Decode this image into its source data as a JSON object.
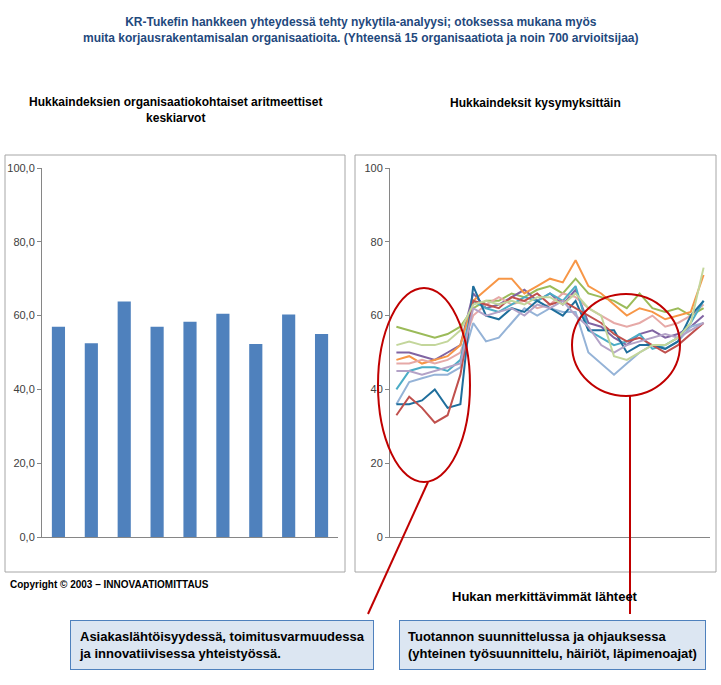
{
  "title": [
    "KR-Tukefin hankkeen yhteydessä tehty nykytila-analyysi; otoksessa mukana myös",
    "muita korjausrakentamisalan organisaatioita. (Yhteensä 15 organisaatiota ja noin 700 arvioitsijaa)"
  ],
  "copyright": "Copyright © 2003 – INNOVAATIOMITTAUS",
  "heading": "Hukan merkittävimmät lähteet",
  "callouts": [
    [
      "Asiakaslähtöisyydessä, toimitusvarmuudessa",
      "ja innovatiivisessa yhteistyössä."
    ],
    [
      "Tuotannon suunnittelussa ja ohjauksessa",
      "(yhteinen työsuunnittelu, häiriöt, läpimenoajat)"
    ]
  ],
  "chart_data": [
    {
      "type": "bar",
      "title": [
        "Hukkaindeksien organisaatiokohtaiset aritmeettiset",
        "keskiarvot"
      ],
      "categories": [
        null,
        null,
        null,
        null,
        null,
        null,
        null,
        null,
        null
      ],
      "values": [
        57.0,
        52.5,
        63.8,
        57.0,
        58.3,
        60.5,
        52.3,
        60.3,
        55.0
      ],
      "color": "#4f81bd",
      "ylim": [
        0,
        100
      ],
      "yticks": [
        {
          "value": 0,
          "label": "0,0"
        },
        {
          "value": 20,
          "label": "20,0"
        },
        {
          "value": 40,
          "label": "40,0"
        },
        {
          "value": 60,
          "label": "60,0"
        },
        {
          "value": 80,
          "label": "80,0"
        },
        {
          "value": 100,
          "label": "100,0"
        }
      ],
      "grid": false,
      "tick_labels": "y"
    },
    {
      "type": "line",
      "title": [
        "Hukkaindeksit kysymyksittäin"
      ],
      "categories": [
        null,
        null,
        null,
        null,
        null,
        null,
        null,
        null,
        null,
        null,
        null,
        null,
        null,
        null,
        null,
        null,
        null,
        null,
        null,
        null,
        null,
        null,
        null,
        null,
        null
      ],
      "series": [
        {
          "color": "#9bbb59",
          "values": [
            57,
            56,
            55,
            54,
            55,
            57,
            62,
            64,
            64,
            66,
            65,
            67,
            68,
            66,
            70,
            66,
            65,
            64,
            62,
            66,
            62,
            61,
            62,
            60,
            62
          ]
        },
        {
          "color": "#8064a2",
          "values": [
            50,
            50,
            49,
            48,
            50,
            52,
            66,
            62,
            63,
            65,
            67,
            64,
            66,
            63,
            67,
            58,
            57,
            54,
            52,
            55,
            56,
            54,
            55,
            57,
            60
          ]
        },
        {
          "color": "#f79646",
          "values": [
            48,
            49,
            47,
            48,
            49,
            52,
            64,
            67,
            70,
            70,
            66,
            68,
            70,
            69,
            75,
            68,
            66,
            63,
            60,
            62,
            61,
            59,
            60,
            61,
            71
          ]
        },
        {
          "color": "#e6a9a7",
          "values": [
            47,
            47,
            48,
            47,
            48,
            50,
            60,
            63,
            65,
            63,
            64,
            62,
            63,
            66,
            65,
            62,
            60,
            58,
            57,
            58,
            60,
            57,
            58,
            60,
            63
          ]
        },
        {
          "color": "#95b3d7",
          "values": [
            36,
            42,
            43,
            44,
            44,
            46,
            58,
            53,
            54,
            58,
            62,
            60,
            62,
            61,
            61,
            50,
            47,
            44,
            47,
            50,
            52,
            51,
            53,
            57,
            58
          ]
        },
        {
          "color": "#4bacc6",
          "values": [
            40,
            45,
            46,
            46,
            45,
            48,
            64,
            62,
            61,
            63,
            65,
            64,
            66,
            64,
            68,
            56,
            54,
            52,
            53,
            55,
            51,
            52,
            54,
            58,
            64
          ]
        },
        {
          "color": "#1f6e9c",
          "values": [
            36,
            36,
            37,
            40,
            35,
            36,
            68,
            60,
            59,
            62,
            61,
            64,
            62,
            60,
            64,
            56,
            56,
            56,
            50,
            52,
            52,
            51,
            53,
            60,
            64
          ]
        },
        {
          "color": "#c0504d",
          "values": [
            33,
            38,
            35,
            31,
            33,
            44,
            64,
            63,
            62,
            65,
            64,
            66,
            63,
            64,
            62,
            60,
            58,
            55,
            53,
            54,
            52,
            50,
            52,
            55,
            58
          ]
        },
        {
          "color": "#b3a2c7",
          "values": [
            45,
            45,
            44,
            45,
            46,
            47,
            62,
            60,
            61,
            62,
            60,
            63,
            62,
            64,
            60,
            57,
            52,
            50,
            52,
            53,
            54,
            55,
            54,
            56,
            58
          ]
        },
        {
          "color": "#c3d69b",
          "values": [
            52,
            53,
            52,
            52,
            53,
            56,
            63,
            64,
            63,
            64,
            63,
            65,
            65,
            63,
            66,
            62,
            60,
            49,
            48,
            50,
            52,
            52,
            54,
            58,
            73
          ]
        }
      ],
      "ylim": [
        0,
        100
      ],
      "yticks": [
        0,
        20,
        40,
        60,
        80,
        100
      ],
      "grid": false,
      "tick_labels": "y"
    }
  ]
}
